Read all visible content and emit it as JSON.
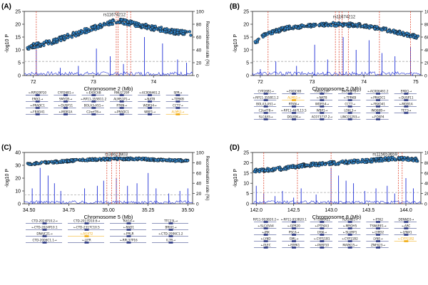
{
  "colors": {
    "point_fill": "#2f7fc1",
    "point_edge": "#111111",
    "recomb_line": "#1f2fd6",
    "threshold_line": "#aaaaaa",
    "candidate_line": "#e0452e",
    "gene_track": "#1d2a7a",
    "gene_highlight": "#f0a500",
    "lead_label": "#222222"
  },
  "chart_data": [
    {
      "type": "scatter",
      "panel_label": "(A)",
      "xlabel": "Chromosome 2 (Mb)",
      "ylabel": "-log10 P",
      "y2label": "Recombination rate (%)",
      "xlim": [
        71.85,
        74.65
      ],
      "ylim": [
        0,
        25
      ],
      "y2lim": [
        0,
        100
      ],
      "x_ticks": [
        72,
        73,
        74
      ],
      "x_tick_labels": [
        "72",
        "73",
        "74"
      ],
      "y_ticks": [
        0,
        5,
        10,
        15,
        20,
        25
      ],
      "y2_ticks": [
        0,
        20,
        40,
        60,
        80,
        100
      ],
      "threshold": 5.5,
      "lead_snp": {
        "name": "rs11674212",
        "x": 73.35,
        "y": 22.6
      },
      "candidate_lines": [
        72.05,
        73.38,
        73.41,
        73.56,
        73.62
      ],
      "gwas": {
        "x_start": 71.9,
        "x_end": 74.62,
        "anchors": [
          [
            71.9,
            11
          ],
          [
            72.3,
            13
          ],
          [
            72.8,
            17
          ],
          [
            73.2,
            20
          ],
          [
            73.4,
            21.5
          ],
          [
            73.6,
            20.5
          ],
          [
            74.0,
            18.5
          ],
          [
            74.35,
            17
          ],
          [
            74.62,
            16.5
          ]
        ],
        "noise": 0.9
      },
      "recomb_spikes": [
        [
          72.05,
          40
        ],
        [
          72.45,
          12
        ],
        [
          72.75,
          15
        ],
        [
          73.05,
          42
        ],
        [
          73.28,
          30
        ],
        [
          73.5,
          18
        ],
        [
          73.85,
          60
        ],
        [
          74.15,
          50
        ],
        [
          74.4,
          25
        ],
        [
          74.55,
          20
        ]
      ],
      "genes": [
        {
          "label": "RPS29P10",
          "dir": "left"
        },
        {
          "label": "CYP26B1",
          "dir": "right"
        },
        {
          "label": "EXOC6B",
          "dir": "left"
        },
        {
          "label": "RNU2-29P",
          "dir": "none"
        },
        {
          "label": "AC006461.2",
          "dir": "left"
        },
        {
          "label": "SPR",
          "dir": "right"
        },
        {
          "label": "EMX1",
          "dir": "right"
        },
        {
          "label": "SMYD5",
          "dir": "right"
        },
        {
          "label": "RP11-355B11.2",
          "dir": "left"
        },
        {
          "label": "ALMS1P1",
          "dir": "right"
        },
        {
          "label": "NAT8",
          "dir": "left"
        },
        {
          "label": "TPRKB",
          "dir": "left"
        },
        {
          "label": "PRADC1",
          "dir": "left"
        },
        {
          "label": "DUSP11",
          "dir": "left"
        },
        {
          "label": "BOLA3-AS1",
          "dir": "right"
        },
        {
          "label": "RTKN",
          "dir": "right"
        },
        {
          "label": "WDR54",
          "dir": "right"
        },
        {
          "label": "CCT7",
          "dir": "right"
        },
        {
          "label": "FBXO41",
          "dir": "left"
        },
        {
          "label": "MOB1A",
          "dir": "left"
        },
        {
          "label": "C2orf78",
          "dir": "right"
        },
        {
          "label": "PRADC1",
          "dir": "left"
        },
        {
          "label": "WBP1",
          "dir": "right"
        },
        {
          "label": "ALMS1",
          "dir": "right",
          "highlight": true
        }
      ]
    },
    {
      "type": "scatter",
      "panel_label": "(B)",
      "xlabel": "Chromosome 2 (Mb)",
      "ylabel": "-log10 P",
      "y2label": "Recombination rate (%)",
      "xlim": [
        71.85,
        75.1
      ],
      "ylim": [
        0,
        25
      ],
      "y2lim": [
        0,
        100
      ],
      "x_ticks": [
        72,
        73,
        74,
        75
      ],
      "x_tick_labels": [
        "72",
        "73",
        "74",
        "75"
      ],
      "y_ticks": [
        0,
        5,
        10,
        15,
        20,
        25
      ],
      "y2_ticks": [
        0,
        20,
        40,
        60,
        80,
        100
      ],
      "threshold": 5.5,
      "lead_snp": {
        "name": "rs11674212",
        "x": 73.62,
        "y": 21.8
      },
      "candidate_lines": [
        72.15,
        73.45,
        73.52,
        73.58,
        73.7,
        74.3,
        74.9
      ],
      "gwas": {
        "x_start": 71.9,
        "x_end": 75.05,
        "anchors": [
          [
            71.9,
            13
          ],
          [
            72.1,
            16
          ],
          [
            72.5,
            18.5
          ],
          [
            73.0,
            19.5
          ],
          [
            73.5,
            20
          ],
          [
            74.0,
            19.5
          ],
          [
            74.5,
            17.5
          ],
          [
            75.05,
            15
          ]
        ],
        "noise": 0.7
      },
      "recomb_spikes": [
        [
          72.0,
          10
        ],
        [
          72.3,
          22
        ],
        [
          72.7,
          15
        ],
        [
          73.05,
          48
        ],
        [
          73.3,
          25
        ],
        [
          73.6,
          60
        ],
        [
          73.85,
          40
        ],
        [
          74.1,
          55
        ],
        [
          74.35,
          35
        ],
        [
          74.6,
          30
        ],
        [
          74.9,
          45
        ]
      ],
      "genes": [
        {
          "label": "CYP26B1",
          "dir": "right"
        },
        {
          "label": "EXOC6B",
          "dir": "left"
        },
        {
          "label": "RNU2-29P",
          "dir": "none"
        },
        {
          "label": "SNORD78",
          "dir": "right"
        },
        {
          "label": "AC006461.2",
          "dir": "left"
        },
        {
          "label": "EMX1",
          "dir": "right"
        },
        {
          "label": "RP11-355B11.2",
          "dir": "left"
        },
        {
          "label": "ALMS1",
          "dir": "right",
          "highlight": true
        },
        {
          "label": "NAT8",
          "dir": "left"
        },
        {
          "label": "TPRKB",
          "dir": "left"
        },
        {
          "label": "PRADC1",
          "dir": "left"
        },
        {
          "label": "DUSP11",
          "dir": "left"
        },
        {
          "label": "BOLA3-AS1",
          "dir": "right"
        },
        {
          "label": "RTKN",
          "dir": "right"
        },
        {
          "label": "WDR54",
          "dir": "right"
        },
        {
          "label": "CCT7",
          "dir": "right"
        },
        {
          "label": "FBXO41",
          "dir": "left"
        },
        {
          "label": "MOB1A",
          "dir": "left"
        },
        {
          "label": "C2orf78",
          "dir": "right"
        },
        {
          "label": "RP11-467L13.5",
          "dir": "left"
        },
        {
          "label": "WBP1",
          "dir": "right"
        },
        {
          "label": "LOXL3",
          "dir": "right"
        },
        {
          "label": "INO80B",
          "dir": "right"
        },
        {
          "label": "TET3",
          "dir": "right"
        },
        {
          "label": "SLC4A5",
          "dir": "right"
        },
        {
          "label": "DGUOK",
          "dir": "right"
        },
        {
          "label": "AC073737.2",
          "dir": "right"
        },
        {
          "label": "LINC01293",
          "dir": "right"
        },
        {
          "label": "FOXP4",
          "dir": "left"
        }
      ]
    },
    {
      "type": "scatter",
      "panel_label": "(C)",
      "xlabel": "Chromosome 5 (Mb)",
      "ylabel": "-log10 P",
      "y2label": "Recombination rate (%)",
      "xlim": [
        34.47,
        35.53
      ],
      "ylim": [
        0,
        40
      ],
      "y2lim": [
        0,
        100
      ],
      "x_ticks": [
        34.5,
        34.75,
        35.0,
        35.25,
        35.5
      ],
      "x_tick_labels": [
        "34.50",
        "34.75",
        "35.00",
        "35.25",
        "35.50"
      ],
      "y_ticks": [
        0,
        10,
        20,
        30,
        40
      ],
      "y2_ticks": [
        0,
        20,
        40,
        60,
        80,
        100
      ],
      "threshold": 7,
      "lead_snp": {
        "name": "rs34623803",
        "x": 35.05,
        "y": 36.5
      },
      "candidate_lines": [
        34.99,
        35.02,
        35.05,
        35.07
      ],
      "gwas": {
        "x_start": 34.49,
        "x_end": 35.5,
        "anchors": [
          [
            34.49,
            31
          ],
          [
            34.7,
            33
          ],
          [
            34.9,
            34.5
          ],
          [
            35.05,
            35
          ],
          [
            35.2,
            35
          ],
          [
            35.35,
            34
          ],
          [
            35.5,
            33.5
          ]
        ],
        "noise": 0.8
      },
      "recomb_spikes": [
        [
          34.52,
          30
        ],
        [
          34.57,
          70
        ],
        [
          34.62,
          55
        ],
        [
          34.66,
          40
        ],
        [
          34.7,
          25
        ],
        [
          34.85,
          30
        ],
        [
          34.93,
          35
        ],
        [
          34.97,
          45
        ],
        [
          35.05,
          50
        ],
        [
          35.12,
          35
        ],
        [
          35.18,
          40
        ],
        [
          35.25,
          60
        ],
        [
          35.3,
          30
        ],
        [
          35.38,
          20
        ],
        [
          35.45,
          25
        ],
        [
          35.5,
          30
        ]
      ],
      "genes": [
        {
          "label": "CTD-2024P10.2",
          "dir": "right"
        },
        {
          "label": "CTD-2017D10.6",
          "dir": "right"
        },
        {
          "label": "RAI14",
          "dir": "right"
        },
        {
          "label": "TTC23L",
          "dir": "right"
        },
        {
          "label": "CTD-2024P10.1",
          "dir": "left"
        },
        {
          "label": "CTD-2317C10.5",
          "dir": "left"
        },
        {
          "label": "RAD1",
          "dir": "left"
        },
        {
          "label": "BRIX1",
          "dir": "right"
        },
        {
          "label": "DNAJC21",
          "dir": "right"
        },
        {
          "label": "AGXT2",
          "dir": "left",
          "highlight": true
        },
        {
          "label": "PRLR",
          "dir": "left"
        },
        {
          "label": "CTD-2006C1.2",
          "dir": "left"
        },
        {
          "label": "CTD-2006C1.1",
          "dir": "right"
        },
        {
          "label": "LIFR",
          "dir": "left"
        },
        {
          "label": "RPL37P16",
          "dir": "left"
        },
        {
          "label": "IL7R",
          "dir": "right"
        }
      ]
    },
    {
      "type": "scatter",
      "panel_label": "(D)",
      "xlabel": "Chromosome 8 (Mb)",
      "ylabel": "-log10 P",
      "y2label": "Recombination rate (%)",
      "xlim": [
        141.95,
        144.2
      ],
      "ylim": [
        0,
        25
      ],
      "y2lim": [
        0,
        100
      ],
      "x_ticks": [
        142.0,
        142.5,
        143.0,
        143.5,
        144.0
      ],
      "x_tick_labels": [
        "142.0",
        "142.5",
        "143.0",
        "143.5",
        "144.0"
      ],
      "y_ticks": [
        0,
        5,
        10,
        15,
        20,
        25
      ],
      "y2_ticks": [
        0,
        20,
        40,
        60,
        80,
        100
      ],
      "threshold": 5.5,
      "lead_snp": {
        "name": "rs115653659",
        "x": 143.72,
        "y": 22.8
      },
      "candidate_lines": [
        142.1,
        142.55,
        143.0,
        143.9,
        143.95
      ],
      "gwas": {
        "x_start": 141.97,
        "x_end": 144.18,
        "anchors": [
          [
            141.97,
            16
          ],
          [
            142.3,
            17
          ],
          [
            142.7,
            19
          ],
          [
            143.1,
            20
          ],
          [
            143.5,
            21
          ],
          [
            143.8,
            22
          ],
          [
            144.18,
            21.5
          ]
        ],
        "noise": 0.8
      },
      "recomb_spikes": [
        [
          142.0,
          35
        ],
        [
          142.1,
          20
        ],
        [
          142.25,
          15
        ],
        [
          142.35,
          25
        ],
        [
          142.5,
          12
        ],
        [
          142.6,
          30
        ],
        [
          142.8,
          18
        ],
        [
          143.0,
          70
        ],
        [
          143.1,
          55
        ],
        [
          143.2,
          45
        ],
        [
          143.3,
          40
        ],
        [
          143.45,
          25
        ],
        [
          143.6,
          30
        ],
        [
          143.75,
          35
        ],
        [
          143.85,
          20
        ],
        [
          144.0,
          50
        ],
        [
          144.1,
          30
        ]
      ],
      "genes": [
        {
          "label": "RP11-953B20.2",
          "dir": "right"
        },
        {
          "label": "RP11-953B20.1",
          "dir": "left"
        },
        {
          "label": "TSNARE1",
          "dir": "left"
        },
        {
          "label": "ADGRB1",
          "dir": "right"
        },
        {
          "label": "PTK2",
          "dir": "left"
        },
        {
          "label": "DENND3",
          "dir": "right"
        },
        {
          "label": "SLC45A4",
          "dir": "left"
        },
        {
          "label": "GPR20",
          "dir": "left"
        },
        {
          "label": "PTP4A3",
          "dir": "left"
        },
        {
          "label": "MROH5",
          "dir": "left"
        },
        {
          "label": "TSNARE1",
          "dir": "right"
        },
        {
          "label": "ARC",
          "dir": "left"
        },
        {
          "label": "JRK",
          "dir": "left"
        },
        {
          "label": "PSCA",
          "dir": "right"
        },
        {
          "label": "LY6K",
          "dir": "right"
        },
        {
          "label": "SLURP1",
          "dir": "left"
        },
        {
          "label": "LYPD2",
          "dir": "left"
        },
        {
          "label": "LYNX1",
          "dir": "left"
        },
        {
          "label": "LY6D",
          "dir": "left"
        },
        {
          "label": "GML",
          "dir": "right"
        },
        {
          "label": "CYP11B1",
          "dir": "left"
        },
        {
          "label": "CYP11B2",
          "dir": "left"
        },
        {
          "label": "LY6E",
          "dir": "right"
        },
        {
          "label": "CYP11B2",
          "dir": "left",
          "highlight": true
        },
        {
          "label": "PLEC",
          "dir": "left"
        },
        {
          "label": "EPPK1",
          "dir": "left"
        },
        {
          "label": "PARP10",
          "dir": "left"
        },
        {
          "label": "MAPK15",
          "dir": "right"
        },
        {
          "label": "ZNF623",
          "dir": "right"
        }
      ]
    }
  ]
}
